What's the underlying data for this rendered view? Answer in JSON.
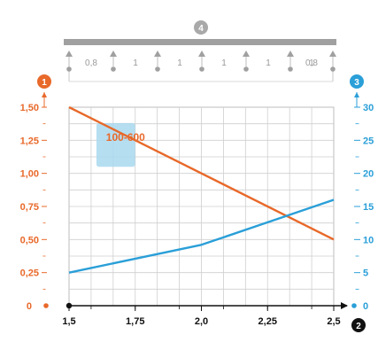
{
  "beam": {
    "marker": "4",
    "span_labels": [
      "0,8",
      "1",
      "1",
      "1",
      "1",
      "1",
      "0,8"
    ]
  },
  "badges": {
    "left_axis": "1",
    "x_axis": "2",
    "right_axis": "3"
  },
  "annotation": {
    "label": "100-600"
  },
  "colors": {
    "left_axis": "#e8692a",
    "right_axis": "#2a9fd8",
    "beam": "#a0a0a0",
    "grid": "#cfcfcf",
    "box": "#a9d8ef"
  },
  "chart_data": {
    "type": "line",
    "x_ticks": [
      "1,5",
      "1,75",
      "2,0",
      "2,25",
      "2,5"
    ],
    "y_left_ticks": [
      "0",
      "0,25",
      "0,50",
      "0,75",
      "1,00",
      "1,25",
      "1,50"
    ],
    "y_right_ticks": [
      "0",
      "5",
      "10",
      "15",
      "20",
      "25",
      "30"
    ],
    "xlim": [
      1.5,
      2.5
    ],
    "ylim_left": [
      0,
      1.5
    ],
    "ylim_right": [
      0,
      30
    ],
    "grid": true,
    "series": [
      {
        "axis": "left",
        "color": "#e8692a",
        "x": [
          1.5,
          2.5
        ],
        "y": [
          1.5,
          0.5
        ]
      },
      {
        "axis": "right",
        "color": "#2a9fd8",
        "x": [
          1.5,
          2.0,
          2.5
        ],
        "y": [
          5,
          9.2,
          16
        ]
      }
    ],
    "annotation_range_x": [
      1.6,
      1.75
    ],
    "annotation_range_y_left": [
      1.05,
      1.38
    ]
  }
}
